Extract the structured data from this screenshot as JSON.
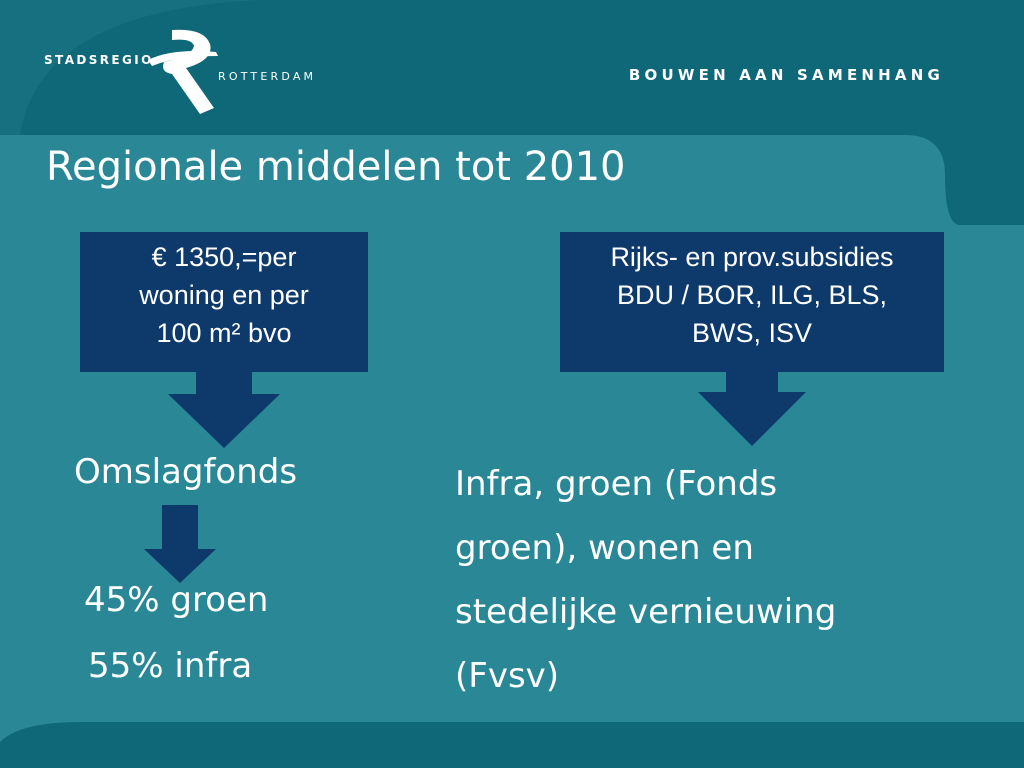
{
  "header": {
    "logo": {
      "word_1": "STADSREGIO",
      "word_2": "ROTTERDAM"
    },
    "tagline": "BOUWEN AAN SAMENHANG"
  },
  "slide": {
    "title": "Regionale middelen tot 2010",
    "left_box": {
      "lines": [
        "€ 1350,=per",
        "woning en per",
        "100 m² bvo"
      ]
    },
    "right_box": {
      "lines": [
        "Rijks- en prov.subsidies",
        "BDU / BOR, ILG, BLS,",
        "BWS, ISV"
      ]
    },
    "left_heading": "Omslagfonds",
    "split": {
      "green": "45% groen",
      "infra": "55% infra"
    },
    "right_text": {
      "lines": [
        "Infra, groen (Fonds",
        "groen), wonen en",
        "stedelijke vernieuwing",
        "(Fvsv)"
      ]
    }
  },
  "colors": {
    "background": "#2a8796",
    "header_band": "#0f6878",
    "box": "#0d3a6b",
    "text": "#ffffff"
  }
}
